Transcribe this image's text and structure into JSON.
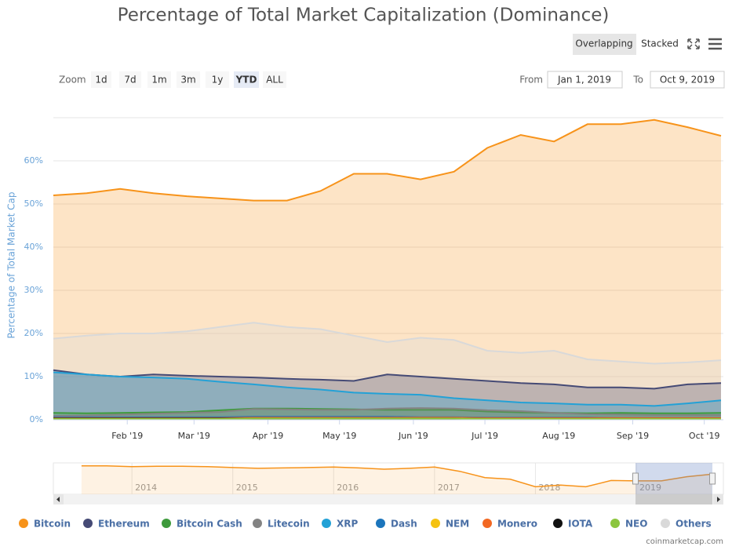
{
  "chart_data": {
    "type": "area",
    "title": "Percentage of Total Market Capitalization (Dominance)",
    "y_label": "Percentage of Total Market Cap",
    "ylim": [
      0,
      70
    ],
    "yticks": [
      {
        "value": 0,
        "label": "0%"
      },
      {
        "value": 10,
        "label": "10%"
      },
      {
        "value": 20,
        "label": "20%"
      },
      {
        "value": 30,
        "label": "30%"
      },
      {
        "value": 40,
        "label": "40%"
      },
      {
        "value": 50,
        "label": "50%"
      },
      {
        "value": 60,
        "label": "60%"
      }
    ],
    "xlim": [
      0,
      281
    ],
    "xticks": [
      {
        "value": 31,
        "label": "Feb '19"
      },
      {
        "value": 59,
        "label": "Mar '19"
      },
      {
        "value": 90,
        "label": "Apr '19"
      },
      {
        "value": 120,
        "label": "May '19"
      },
      {
        "value": 151,
        "label": "Jun '19"
      },
      {
        "value": 181,
        "label": "Jul '19"
      },
      {
        "value": 212,
        "label": "Aug '19"
      },
      {
        "value": 243,
        "label": "Sep '19"
      },
      {
        "value": 273,
        "label": "Oct '19"
      }
    ],
    "grid": true,
    "x": [
      0,
      14,
      28,
      42,
      56,
      70,
      84,
      98,
      112,
      126,
      140,
      154,
      168,
      182,
      196,
      210,
      224,
      238,
      252,
      266,
      280
    ],
    "series": [
      {
        "name": "Bitcoin",
        "color": "#f7931a",
        "values": [
          52,
          52.5,
          53.5,
          52.5,
          51.8,
          51.3,
          50.8,
          50.8,
          53,
          57,
          57,
          55.7,
          57.5,
          63,
          66,
          64.5,
          68.5,
          68.5,
          69.5,
          67.8,
          65.8
        ]
      },
      {
        "name": "Ethereum",
        "color": "#454a75",
        "values": [
          11.5,
          10.5,
          10,
          10.5,
          10.2,
          10,
          9.8,
          9.5,
          9.3,
          9,
          10.5,
          10,
          9.5,
          9,
          8.5,
          8.2,
          7.5,
          7.5,
          7.2,
          8.2,
          8.5
        ]
      },
      {
        "name": "Bitcoin Cash",
        "color": "#3e9a3c",
        "values": [
          1.6,
          1.5,
          1.6,
          1.7,
          1.8,
          2.2,
          2.6,
          2.6,
          2.5,
          2.4,
          2.3,
          2.3,
          2.3,
          1.9,
          1.7,
          1.6,
          1.5,
          1.6,
          1.5,
          1.5,
          1.6
        ]
      },
      {
        "name": "Litecoin",
        "color": "#838383",
        "values": [
          0.9,
          1,
          1.2,
          1.4,
          1.6,
          1.8,
          2.5,
          2.4,
          2.3,
          2.3,
          2.6,
          2.7,
          2.6,
          2.2,
          2,
          1.6,
          1.3,
          1.2,
          1.1,
          1.1,
          1.1
        ]
      },
      {
        "name": "XRP",
        "color": "#23a1d6",
        "values": [
          11,
          10.5,
          10,
          9.8,
          9.5,
          8.8,
          8.2,
          7.5,
          7,
          6.3,
          6,
          5.8,
          5,
          4.5,
          4,
          3.8,
          3.5,
          3.5,
          3.2,
          3.8,
          4.5
        ]
      },
      {
        "name": "Dash",
        "color": "#1c75bc",
        "values": [
          0.6,
          0.6,
          0.6,
          0.6,
          0.6,
          0.6,
          0.7,
          0.7,
          0.7,
          0.7,
          0.7,
          0.6,
          0.6,
          0.5,
          0.5,
          0.5,
          0.5,
          0.4,
          0.4,
          0.4,
          0.4
        ]
      },
      {
        "name": "NEM",
        "color": "#f5c211",
        "values": [
          0.3,
          0.3,
          0.3,
          0.3,
          0.3,
          0.3,
          0.3,
          0.3,
          0.3,
          0.3,
          0.3,
          0.3,
          0.2,
          0.2,
          0.2,
          0.2,
          0.2,
          0.2,
          0.2,
          0.2,
          0.2
        ]
      },
      {
        "name": "Monero",
        "color": "#f26822",
        "values": [
          0.4,
          0.4,
          0.4,
          0.4,
          0.4,
          0.4,
          0.5,
          0.5,
          0.5,
          0.5,
          0.5,
          0.5,
          0.5,
          0.4,
          0.4,
          0.4,
          0.4,
          0.4,
          0.4,
          0.4,
          0.4
        ]
      },
      {
        "name": "IOTA",
        "color": "#111111",
        "values": [
          0.3,
          0.3,
          0.3,
          0.3,
          0.3,
          0.3,
          0.3,
          0.3,
          0.3,
          0.3,
          0.3,
          0.3,
          0.3,
          0.2,
          0.2,
          0.2,
          0.2,
          0.2,
          0.2,
          0.2,
          0.2
        ]
      },
      {
        "name": "NEO",
        "color": "#8cc63e",
        "values": [
          0.2,
          0.2,
          0.2,
          0.2,
          0.2,
          0.2,
          0.3,
          0.3,
          0.3,
          0.3,
          0.3,
          0.3,
          0.3,
          0.2,
          0.2,
          0.2,
          0.2,
          0.2,
          0.2,
          0.2,
          0.2
        ]
      },
      {
        "name": "Others",
        "color": "#d9d9d9",
        "values": [
          18.8,
          19.5,
          20,
          20,
          20.5,
          21.5,
          22.5,
          21.5,
          21,
          19.5,
          18,
          19,
          18.5,
          16,
          15.5,
          16,
          14,
          13.5,
          13,
          13.3,
          13.8
        ]
      }
    ]
  },
  "controls": {
    "modes": [
      "Overlapping",
      "Stacked"
    ],
    "zoom_label": "Zoom",
    "zoom_buttons": [
      "1d",
      "7d",
      "1m",
      "3m",
      "1y",
      "YTD",
      "ALL"
    ],
    "from_label": "From",
    "from": "Jan 1, 2019",
    "to_label": "To",
    "to": "Oct 9, 2019"
  },
  "navigator": {
    "xlim": [
      2013.33,
      2019.77
    ],
    "ylim": [
      20,
      95
    ],
    "xticks": [
      2014,
      2015,
      2016,
      2017,
      2018,
      2019
    ],
    "x": [
      2013.5,
      2013.75,
      2014,
      2014.25,
      2014.5,
      2014.75,
      2015,
      2015.25,
      2015.5,
      2015.75,
      2016,
      2016.25,
      2016.5,
      2016.75,
      2017,
      2017.25,
      2017.5,
      2017.75,
      2018,
      2018.25,
      2018.5,
      2018.75,
      2019,
      2019.25,
      2019.5,
      2019.75
    ],
    "values": [
      88,
      88,
      86,
      87,
      87,
      86,
      84,
      82,
      83,
      84,
      85,
      83,
      80,
      82,
      85,
      75,
      60,
      56,
      38,
      42,
      38,
      53,
      52,
      52,
      62,
      68
    ]
  },
  "credit": "coinmarketcap.com"
}
